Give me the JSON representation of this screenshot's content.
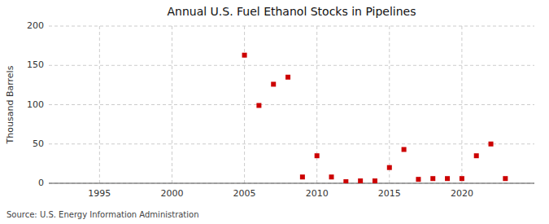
{
  "chart_data": {
    "type": "scatter",
    "title": "Annual U.S. Fuel Ethanol Stocks in Pipelines",
    "ylabel": "Thousand Barrels",
    "annotations": [
      "Source: U.S. Energy Information Administration"
    ],
    "x": [
      2005,
      2006,
      2007,
      2008,
      2009,
      2010,
      2011,
      2012,
      2013,
      2014,
      2015,
      2016,
      2017,
      2018,
      2019,
      2020,
      2021,
      2022,
      2023
    ],
    "values": [
      163,
      99,
      126,
      135,
      8,
      35,
      8,
      2,
      3,
      3,
      20,
      43,
      5,
      6,
      6,
      6,
      35,
      50,
      6
    ],
    "color": "#cc0000",
    "marker": "square",
    "xlim": [
      1991.5,
      2025
    ],
    "ylim": [
      0,
      200
    ],
    "xticks": [
      1995,
      2000,
      2005,
      2010,
      2015,
      2020
    ],
    "yticks": [
      0,
      50,
      100,
      150,
      200
    ],
    "grid": true
  }
}
